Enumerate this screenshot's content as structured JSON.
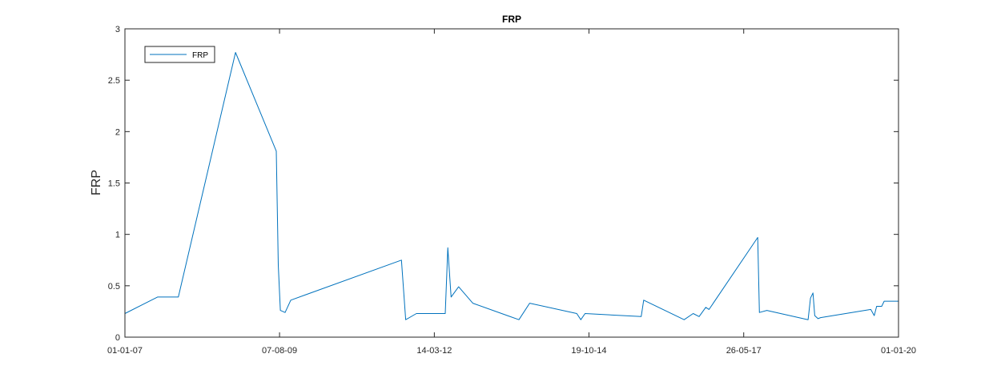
{
  "chart_data": {
    "type": "line",
    "title": "FRP",
    "xlabel": "",
    "ylabel": "FRP",
    "x_type": "date",
    "x_tick_labels": [
      "01-01-07",
      "07-08-09",
      "14-03-12",
      "19-10-14",
      "26-05-17",
      "01-01-20"
    ],
    "x_ticks": [
      "2007-01-01",
      "2009-08-07",
      "2012-03-14",
      "2014-10-19",
      "2017-05-26",
      "2020-01-01"
    ],
    "xlim": [
      "2007-01-01",
      "2020-01-01"
    ],
    "ylim": [
      0,
      3
    ],
    "y_ticks": [
      0,
      0.5,
      1,
      1.5,
      2,
      2.5,
      3
    ],
    "y_tick_labels": [
      "0",
      "0.5",
      "1",
      "1.5",
      "2",
      "2.5",
      "3"
    ],
    "grid": false,
    "legend_position": "top-left",
    "line_color": "#0072BD",
    "series": [
      {
        "name": "FRP",
        "x": [
          "2007-01-01",
          "2007-07-20",
          "2007-11-25",
          "2008-11-10",
          "2009-07-18",
          "2009-07-30",
          "2009-08-12",
          "2009-09-10",
          "2009-10-15",
          "2011-08-25",
          "2011-09-20",
          "2011-11-25",
          "2012-05-20",
          "2012-06-05",
          "2012-06-25",
          "2012-08-10",
          "2012-11-05",
          "2013-08-15",
          "2013-10-20",
          "2014-08-05",
          "2014-08-30",
          "2014-09-25",
          "2015-09-05",
          "2015-09-20",
          "2016-05-25",
          "2016-07-20",
          "2016-08-25",
          "2016-10-05",
          "2016-10-25",
          "2017-08-20",
          "2017-08-30",
          "2017-10-15",
          "2018-06-25",
          "2018-07-10",
          "2018-07-25",
          "2018-08-05",
          "2018-08-25",
          "2018-09-10",
          "2019-07-15",
          "2019-08-05",
          "2019-08-20",
          "2019-09-20",
          "2019-10-05",
          "2020-01-01"
        ],
        "y": [
          0.23,
          0.39,
          0.39,
          2.77,
          1.81,
          0.7,
          0.26,
          0.24,
          0.36,
          0.75,
          0.17,
          0.23,
          0.23,
          0.87,
          0.39,
          0.49,
          0.33,
          0.17,
          0.33,
          0.23,
          0.17,
          0.23,
          0.2,
          0.36,
          0.17,
          0.23,
          0.2,
          0.29,
          0.27,
          0.97,
          0.24,
          0.26,
          0.17,
          0.38,
          0.43,
          0.21,
          0.18,
          0.19,
          0.27,
          0.21,
          0.3,
          0.3,
          0.35,
          0.35
        ]
      }
    ]
  }
}
